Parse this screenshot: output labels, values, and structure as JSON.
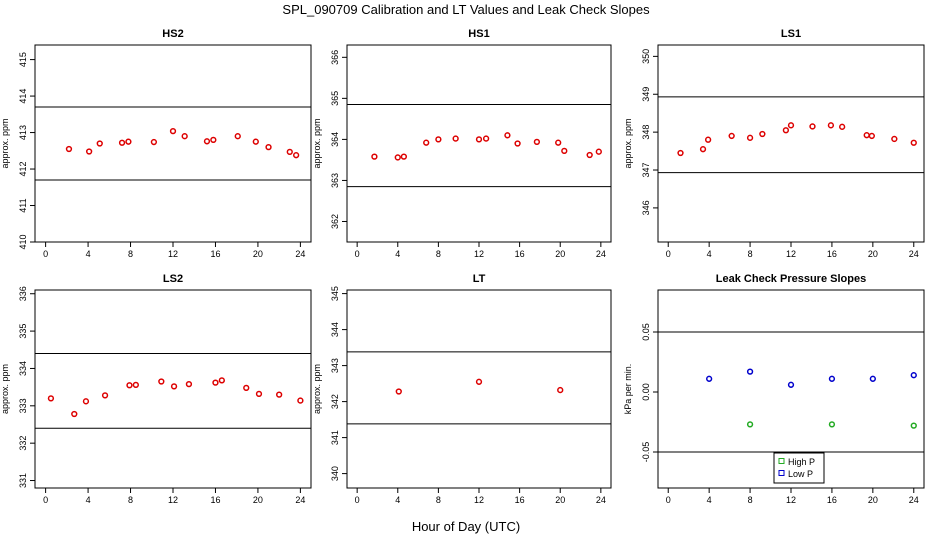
{
  "figure": {
    "title": "SPL_090709  Calibration and LT Values and Leak Check Slopes",
    "xlabel": "Hour of Day (UTC)"
  },
  "chart_data": [
    {
      "type": "scatter",
      "title": "HS2",
      "ylabel": "approx. ppm",
      "xlim": [
        -1,
        25
      ],
      "ylim": [
        410,
        415.4
      ],
      "xticks": [
        0,
        4,
        8,
        12,
        16,
        20,
        24
      ],
      "yticks": [
        410,
        411,
        412,
        413,
        414,
        415
      ],
      "hlines": [
        413.7,
        411.7
      ],
      "series": [
        {
          "color": "#dd0000",
          "marker": "circle",
          "x": [
            2.2,
            4.1,
            5.1,
            7.2,
            7.8,
            10.2,
            12.0,
            13.1,
            15.2,
            15.8,
            18.1,
            19.8,
            21.0,
            23.0,
            23.6
          ],
          "y": [
            412.55,
            412.48,
            412.7,
            412.72,
            412.75,
            412.74,
            413.04,
            412.9,
            412.76,
            412.8,
            412.9,
            412.75,
            412.6,
            412.47,
            412.38
          ]
        }
      ]
    },
    {
      "type": "scatter",
      "title": "HS1",
      "ylabel": "approx. ppm",
      "xlim": [
        -1,
        25
      ],
      "ylim": [
        361.5,
        366.3
      ],
      "xticks": [
        0,
        4,
        8,
        12,
        16,
        20,
        24
      ],
      "yticks": [
        362,
        363,
        364,
        365,
        366
      ],
      "hlines": [
        364.85,
        362.85
      ],
      "series": [
        {
          "color": "#dd0000",
          "marker": "circle",
          "x": [
            1.7,
            4.0,
            4.6,
            6.8,
            8.0,
            9.7,
            12.0,
            12.7,
            14.8,
            15.8,
            17.7,
            19.8,
            20.4,
            22.9,
            23.8
          ],
          "y": [
            363.58,
            363.56,
            363.58,
            363.92,
            364.0,
            364.02,
            364.0,
            364.02,
            364.1,
            363.9,
            363.94,
            363.92,
            363.72,
            363.62,
            363.7
          ]
        }
      ]
    },
    {
      "type": "scatter",
      "title": "LS1",
      "ylabel": "approx. ppm",
      "xlim": [
        -1,
        25
      ],
      "ylim": [
        345.1,
        350.3
      ],
      "xticks": [
        0,
        4,
        8,
        12,
        16,
        20,
        24
      ],
      "yticks": [
        346,
        347,
        348,
        349,
        350
      ],
      "hlines": [
        348.93,
        346.93
      ],
      "series": [
        {
          "color": "#dd0000",
          "marker": "circle",
          "x": [
            1.2,
            3.4,
            3.9,
            6.2,
            8.0,
            9.2,
            11.5,
            12.0,
            14.1,
            15.9,
            17.0,
            19.4,
            19.9,
            22.1,
            24.0
          ],
          "y": [
            347.45,
            347.55,
            347.8,
            347.9,
            347.85,
            347.95,
            348.05,
            348.18,
            348.15,
            348.18,
            348.14,
            347.92,
            347.9,
            347.82,
            347.72
          ]
        }
      ]
    },
    {
      "type": "scatter",
      "title": "LS2",
      "ylabel": "approx. ppm",
      "xlim": [
        -1,
        25
      ],
      "ylim": [
        330.8,
        336.1
      ],
      "xticks": [
        0,
        4,
        8,
        12,
        16,
        20,
        24
      ],
      "yticks": [
        331,
        332,
        333,
        334,
        335,
        336
      ],
      "hlines": [
        334.4,
        332.4
      ],
      "series": [
        {
          "color": "#dd0000",
          "marker": "circle",
          "x": [
            0.5,
            2.7,
            3.8,
            5.6,
            7.9,
            8.5,
            10.9,
            12.1,
            13.5,
            16.0,
            16.6,
            18.9,
            20.1,
            22.0,
            24.0
          ],
          "y": [
            333.2,
            332.78,
            333.12,
            333.28,
            333.55,
            333.56,
            333.65,
            333.52,
            333.58,
            333.62,
            333.68,
            333.48,
            333.32,
            333.3,
            333.14
          ]
        }
      ]
    },
    {
      "type": "scatter",
      "title": "LT",
      "ylabel": "approx. ppm",
      "xlim": [
        -1,
        25
      ],
      "ylim": [
        339.6,
        345.1
      ],
      "xticks": [
        0,
        4,
        8,
        12,
        16,
        20,
        24
      ],
      "yticks": [
        340,
        341,
        342,
        343,
        344,
        345
      ],
      "hlines": [
        343.38,
        341.38
      ],
      "series": [
        {
          "color": "#dd0000",
          "marker": "circle",
          "x": [
            4.1,
            12.0,
            20.0
          ],
          "y": [
            342.28,
            342.55,
            342.32
          ]
        }
      ]
    },
    {
      "type": "scatter",
      "title": "Leak Check Pressure Slopes",
      "ylabel": "kPa per min.",
      "xlim": [
        -1,
        25
      ],
      "ylim": [
        -0.08,
        0.085
      ],
      "xticks": [
        0,
        4,
        8,
        12,
        16,
        20,
        24
      ],
      "yticks": [
        -0.05,
        0.0,
        0.05
      ],
      "ytick_labels": [
        "-0.05",
        "0.00",
        "0.05"
      ],
      "hlines": [
        0.05,
        -0.05
      ],
      "legend": "bottom-center",
      "series": [
        {
          "name": "High P",
          "color": "#22aa22",
          "marker": "circle",
          "x": [
            8.0,
            16.0,
            24.0
          ],
          "y": [
            -0.027,
            -0.027,
            -0.028
          ]
        },
        {
          "name": "Low P",
          "color": "#0000cc",
          "marker": "circle",
          "x": [
            4.0,
            8.0,
            12.0,
            16.0,
            20.0,
            24.0
          ],
          "y": [
            0.011,
            0.017,
            0.006,
            0.011,
            0.011,
            0.014
          ]
        }
      ]
    }
  ]
}
